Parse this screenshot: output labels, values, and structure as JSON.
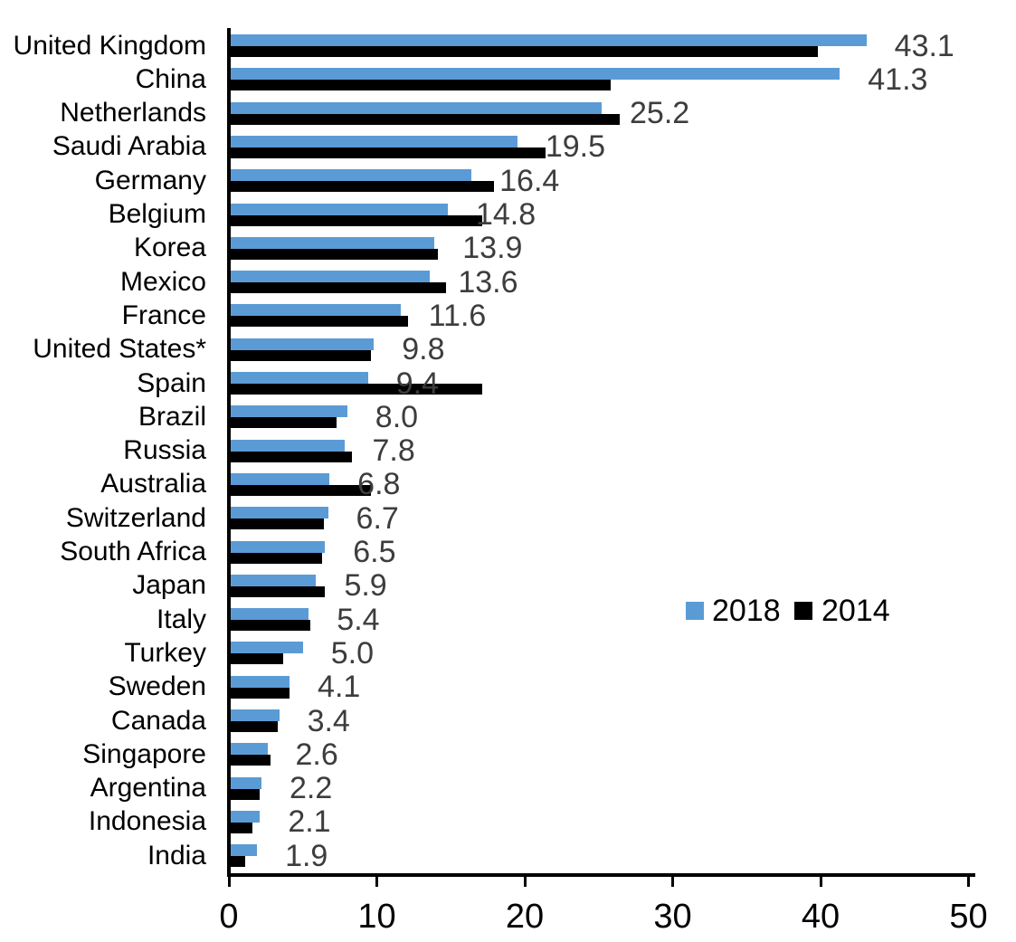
{
  "chart_data": {
    "type": "bar",
    "orientation": "horizontal",
    "title": "",
    "xlabel": "",
    "ylabel": "",
    "xlim": [
      0,
      50
    ],
    "x_ticks": [
      0,
      10,
      20,
      30,
      40,
      50
    ],
    "grid": false,
    "legend_position": "center-right",
    "categories": [
      "United Kingdom",
      "China",
      "Netherlands",
      "Saudi Arabia",
      "Germany",
      "Belgium",
      "Korea",
      "Mexico",
      "France",
      "United States*",
      "Spain",
      "Brazil",
      "Russia",
      "Australia",
      "Switzerland",
      "South Africa",
      "Japan",
      "Italy",
      "Turkey",
      "Sweden",
      "Canada",
      "Singapore",
      "Argentina",
      "Indonesia",
      "India"
    ],
    "series": [
      {
        "name": "2018",
        "color": "#5B9BD5",
        "values": [
          43.1,
          41.3,
          25.2,
          19.5,
          16.4,
          14.8,
          13.9,
          13.6,
          11.6,
          9.8,
          9.4,
          8.0,
          7.8,
          6.8,
          6.7,
          6.5,
          5.9,
          5.4,
          5.0,
          4.1,
          3.4,
          2.6,
          2.2,
          2.1,
          1.9
        ]
      },
      {
        "name": "2014",
        "color": "#000000",
        "values": [
          39.8,
          25.8,
          26.4,
          21.4,
          17.9,
          17.1,
          14.1,
          14.7,
          12.1,
          9.6,
          17.1,
          7.3,
          8.3,
          9.6,
          6.4,
          6.3,
          6.5,
          5.5,
          3.7,
          4.1,
          3.3,
          2.8,
          2.1,
          1.6,
          1.1
        ]
      }
    ],
    "data_labels": [
      "43.1",
      "41.3",
      "25.2",
      "19.5",
      "16.4",
      "14.8",
      "13.9",
      "13.6",
      "11.6",
      "9.8",
      "9.4",
      "8.0",
      "7.8",
      "6.8",
      "6.7",
      "6.5",
      "5.9",
      "5.4",
      "5.0",
      "4.1",
      "3.4",
      "2.6",
      "2.2",
      "2.1",
      "1.9"
    ],
    "data_label_color": "#3D3D3D"
  }
}
